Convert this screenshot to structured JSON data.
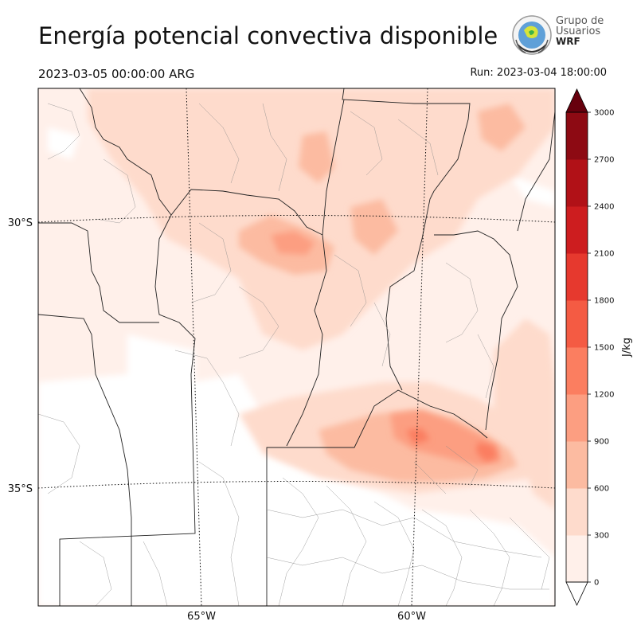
{
  "header": {
    "title": "Energía potencial convectiva disponible",
    "valid_time": "2023-03-05 00:00:00 ARG",
    "run_label": "Run: 2023-03-04 18:00:00"
  },
  "logo": {
    "line1": "Grupo de",
    "line2": "Usuarios",
    "line3": "WRF"
  },
  "map": {
    "lat_labels": [
      "30°S",
      "35°S"
    ],
    "lon_labels": [
      "65°W",
      "60°W"
    ]
  },
  "colorbar": {
    "unit": "J/kg",
    "levels": [
      0,
      300,
      600,
      900,
      1200,
      1500,
      1800,
      2100,
      2400,
      2700,
      3000
    ],
    "tick_labels": [
      "0",
      "300",
      "600",
      "900",
      "1200",
      "1500",
      "1800",
      "2100",
      "2400",
      "2700",
      "3000"
    ],
    "colors": [
      "#fff0ea",
      "#fedbcc",
      "#fcbba1",
      "#fc9e81",
      "#fb7e60",
      "#f45b43",
      "#e6392e",
      "#cd1d1f",
      "#b11117",
      "#8d0a13"
    ],
    "extend_color": "#67000d"
  }
}
